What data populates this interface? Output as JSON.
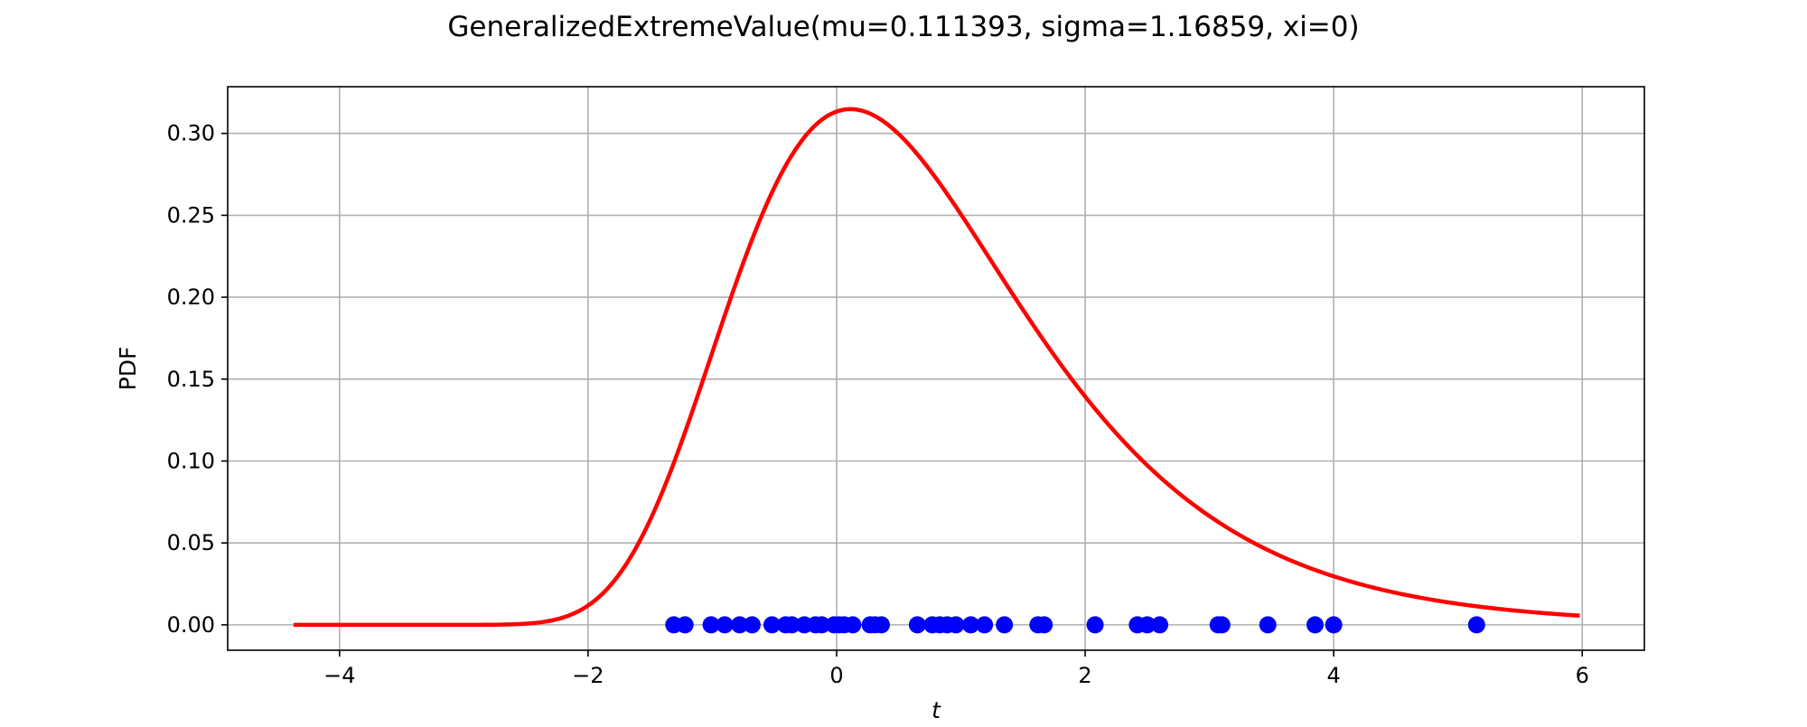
{
  "chart_data": {
    "type": "line",
    "title": "GeneralizedExtremeValue(mu=0.111393, sigma=1.16859, xi=0)",
    "xlabel": "t",
    "ylabel": "PDF",
    "xlim": [
      -4.9,
      6.5
    ],
    "ylim": [
      -0.0155,
      0.3285
    ],
    "x_ticks": [
      -4,
      -2,
      0,
      2,
      4,
      6
    ],
    "x_tick_labels": [
      "−4",
      "−2",
      "0",
      "2",
      "4",
      "6"
    ],
    "y_ticks": [
      0.0,
      0.05,
      0.1,
      0.15,
      0.2,
      0.25,
      0.3
    ],
    "y_tick_labels": [
      "0.00",
      "0.05",
      "0.10",
      "0.15",
      "0.20",
      "0.25",
      "0.30"
    ],
    "grid": true,
    "curve": {
      "distribution": "gumbel",
      "mu": 0.111393,
      "sigma": 1.16859,
      "xi": 0,
      "x_range": [
        -4.37,
        5.98
      ],
      "color": "#ff0000"
    },
    "sample_points": {
      "color": "#0000ff",
      "y": 0,
      "x": [
        -1.31,
        -1.22,
        -1.01,
        -0.9,
        -0.78,
        -0.68,
        -0.52,
        -0.41,
        -0.36,
        -0.26,
        -0.17,
        -0.12,
        -0.02,
        0.02,
        0.06,
        0.13,
        0.27,
        0.31,
        0.36,
        0.65,
        0.77,
        0.83,
        0.89,
        0.96,
        1.08,
        1.19,
        1.35,
        1.62,
        1.67,
        2.08,
        2.42,
        2.5,
        2.6,
        3.07,
        3.1,
        3.47,
        3.85,
        4.0,
        5.15
      ]
    }
  }
}
